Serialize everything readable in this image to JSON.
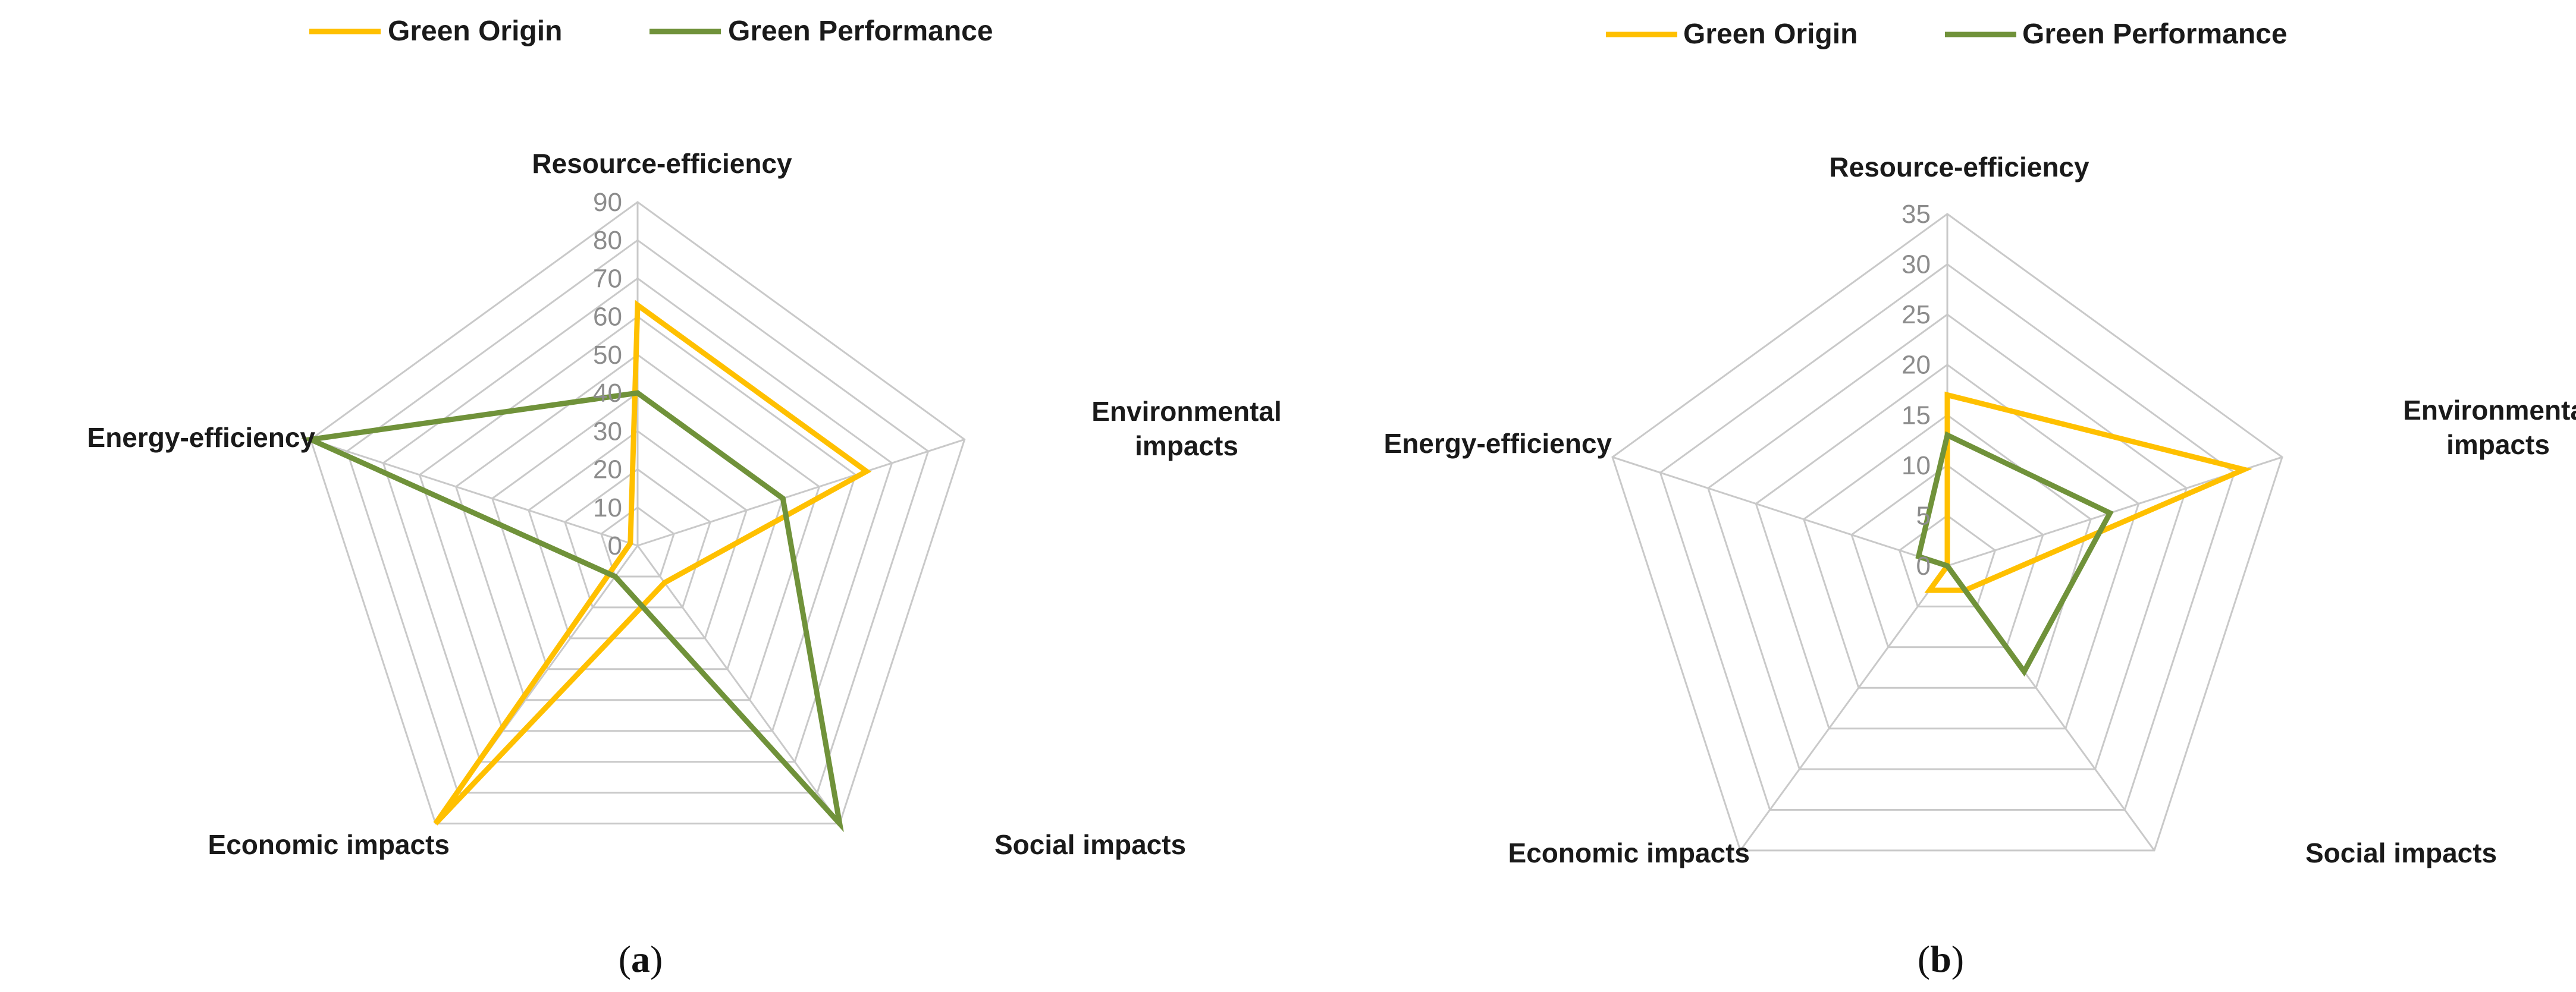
{
  "legend": [
    {
      "name": "Green Origin",
      "color": "#FFC000"
    },
    {
      "name": "Green Performance",
      "color": "#70923A"
    }
  ],
  "chart_data": [
    {
      "type": "radar",
      "caption_letter": "a",
      "categories": [
        "Resource-efficiency",
        "Environmental impacts",
        "Social impacts",
        "Economic impacts",
        "Energy-efficiency"
      ],
      "axis_max": 90,
      "ticks": [
        0,
        10,
        20,
        30,
        40,
        50,
        60,
        70,
        80,
        90
      ],
      "series": [
        {
          "name": "Green Origin",
          "color": "#FFC000",
          "values": [
            63,
            63,
            12,
            90,
            2
          ]
        },
        {
          "name": "Green Performance",
          "color": "#70923A",
          "values": [
            40,
            40,
            90,
            10,
            90
          ]
        }
      ]
    },
    {
      "type": "radar",
      "caption_letter": "b",
      "categories": [
        "Resource-efficiency",
        "Environmental impacts",
        "Social impacts",
        "Economic impacts",
        "Energy-efficiency"
      ],
      "axis_max": 35,
      "ticks": [
        0,
        5,
        10,
        15,
        20,
        25,
        30,
        35
      ],
      "series": [
        {
          "name": "Green Origin",
          "color": "#FFC000",
          "values": [
            17,
            31,
            3,
            3,
            0
          ]
        },
        {
          "name": "Green Performance",
          "color": "#70923A",
          "values": [
            13,
            17,
            13,
            0,
            3
          ]
        }
      ]
    }
  ]
}
